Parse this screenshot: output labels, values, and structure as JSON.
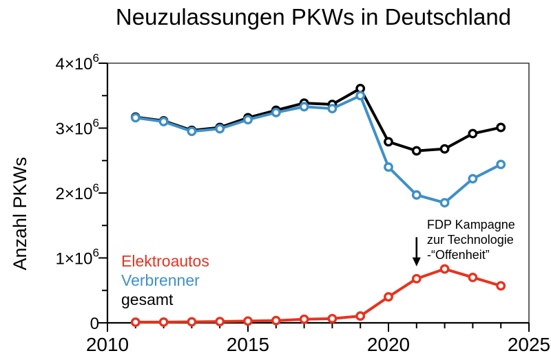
{
  "chart_data": {
    "type": "line",
    "title": "Neuzulassungen PKWs in Deutschland",
    "xlabel": "",
    "ylabel": "Anzahl PKWs",
    "xlim": [
      2010,
      2025
    ],
    "ylim": [
      0,
      4000000
    ],
    "grid": false,
    "legend_position": "lower-left-inside",
    "x": [
      2011,
      2012,
      2013,
      2014,
      2015,
      2016,
      2017,
      2018,
      2019,
      2020,
      2021,
      2022,
      2023,
      2024
    ],
    "series": [
      {
        "name": "Elektroautos",
        "color": "#e6331f",
        "values": [
          10000,
          12000,
          16000,
          20000,
          28000,
          35000,
          55000,
          65000,
          105000,
          400000,
          680000,
          830000,
          700000,
          570000
        ]
      },
      {
        "name": "Verbrenner",
        "color": "#3f90c6",
        "values": [
          3160000,
          3100000,
          2950000,
          2990000,
          3130000,
          3240000,
          3330000,
          3300000,
          3500000,
          2400000,
          1970000,
          1850000,
          2220000,
          2440000
        ]
      },
      {
        "name": "gesamt",
        "color": "#000000",
        "values": [
          3170000,
          3112000,
          2965000,
          3010000,
          3160000,
          3275000,
          3385000,
          3365000,
          3610000,
          2790000,
          2650000,
          2680000,
          2915000,
          3010000
        ]
      }
    ],
    "x_major_ticks": [
      {
        "v": 2010,
        "label": "2010"
      },
      {
        "v": 2015,
        "label": "2015"
      },
      {
        "v": 2020,
        "label": "2020"
      },
      {
        "v": 2025,
        "label": "2025"
      }
    ],
    "x_minor_step": 1,
    "y_major_ticks": [
      {
        "v": 0,
        "base": "0",
        "exp": ""
      },
      {
        "v": 1000000,
        "base": "1×10",
        "exp": "6"
      },
      {
        "v": 2000000,
        "base": "2×10",
        "exp": "6"
      },
      {
        "v": 3000000,
        "base": "3×10",
        "exp": "6"
      },
      {
        "v": 4000000,
        "base": "4×10",
        "exp": "6"
      }
    ],
    "y_minor_step": 500000,
    "annotation": {
      "lines": [
        "FDP Kampagne",
        "zur Technologie",
        "-“Offenheit”"
      ],
      "arrow_year": 2021,
      "arrow_from_value": 1320000,
      "arrow_to_value": 870000
    }
  }
}
